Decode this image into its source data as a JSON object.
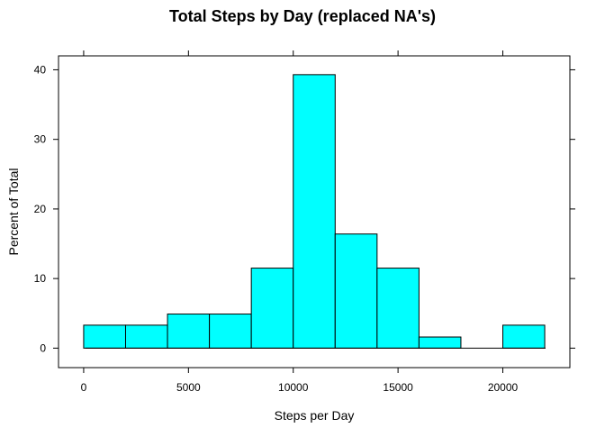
{
  "chart_data": {
    "type": "bar",
    "title": "Total Steps by Day (replaced NA's)",
    "xlabel": "Steps per Day",
    "ylabel": "Percent of Total",
    "bin_edges": [
      0,
      2000,
      4000,
      6000,
      8000,
      10000,
      12000,
      14000,
      16000,
      18000,
      20000,
      22000
    ],
    "values": [
      3.3,
      3.3,
      4.9,
      4.9,
      11.5,
      39.3,
      16.4,
      11.5,
      1.6,
      0,
      3.3
    ],
    "xlim": [
      -1200,
      23200
    ],
    "ylim": [
      -2.8,
      42
    ],
    "x_ticks": [
      0,
      5000,
      10000,
      15000,
      20000
    ],
    "y_ticks": [
      0,
      10,
      20,
      30,
      40
    ],
    "bar_color": "#00FFFF",
    "grid": false
  }
}
